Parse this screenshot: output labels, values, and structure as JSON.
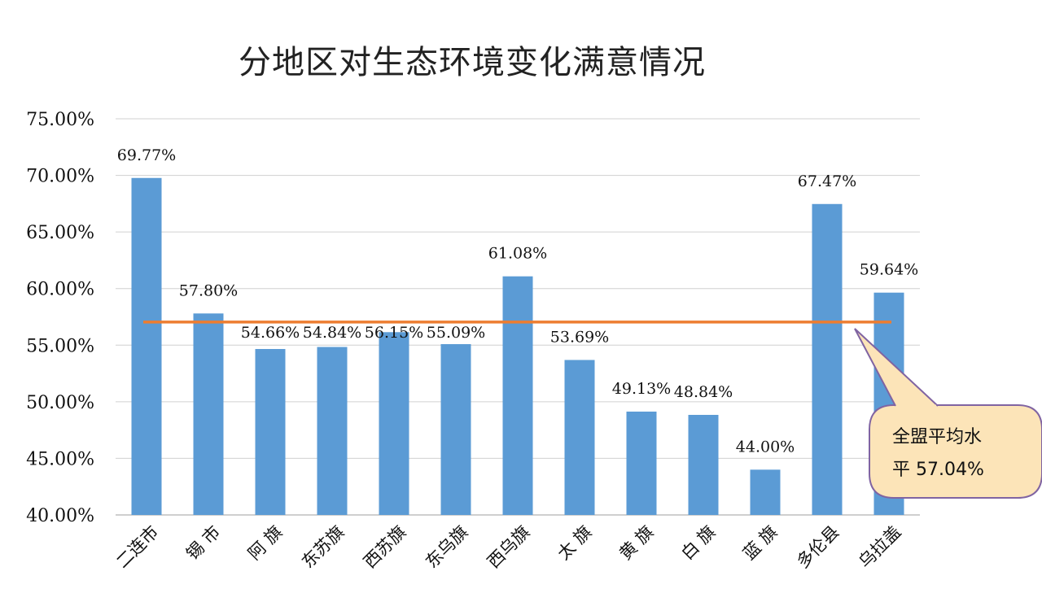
{
  "chart_data": {
    "type": "bar",
    "title": "分地区对生态环境变化满意情况",
    "categories": [
      "二连市",
      "锡 市",
      "阿 旗",
      "东苏旗",
      "西苏旗",
      "东乌旗",
      "西乌旗",
      "太 旗",
      "黄 旗",
      "白 旗",
      "蓝 旗",
      "多伦县",
      "乌拉盖"
    ],
    "values": [
      69.77,
      57.8,
      54.66,
      54.84,
      56.15,
      55.09,
      61.08,
      53.69,
      49.13,
      48.84,
      44.0,
      67.47,
      59.64
    ],
    "data_labels": [
      "69.77%",
      "57.80%",
      "54.66%",
      "54.84%",
      "56.15%",
      "55.09%",
      "61.08%",
      "53.69%",
      "49.13%",
      "48.84%",
      "44.00%",
      "67.47%",
      "59.64%"
    ],
    "ylim": [
      40,
      75
    ],
    "yticks": [
      "40.00%",
      "45.00%",
      "50.00%",
      "55.00%",
      "60.00%",
      "65.00%",
      "70.00%",
      "75.00%"
    ],
    "grid": true,
    "reference_line": {
      "value": 57.04,
      "color": "#ED7D31"
    },
    "annotation": {
      "line1": "全盟平均水",
      "line2": "平 57.04%"
    },
    "bar_color": "#5B9BD5"
  }
}
